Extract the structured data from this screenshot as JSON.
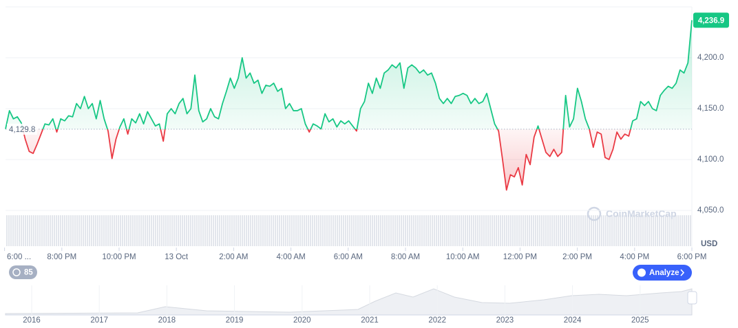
{
  "chart_data": {
    "type": "area",
    "values": [
      4130,
      4148,
      4140,
      4142,
      4136,
      4120,
      4108,
      4106,
      4115,
      4125,
      4135,
      4134,
      4140,
      4127,
      4140,
      4138,
      4143,
      4142,
      4155,
      4150,
      4162,
      4150,
      4155,
      4140,
      4158,
      4140,
      4128,
      4101,
      4120,
      4132,
      4140,
      4125,
      4140,
      4136,
      4145,
      4135,
      4147,
      4140,
      4133,
      4135,
      4118,
      4145,
      4150,
      4145,
      4155,
      4160,
      4145,
      4150,
      4183,
      4148,
      4137,
      4140,
      4150,
      4142,
      4140,
      4155,
      4167,
      4180,
      4170,
      4180,
      4200,
      4180,
      4185,
      4175,
      4178,
      4165,
      4173,
      4172,
      4175,
      4167,
      4170,
      4150,
      4155,
      4148,
      4148,
      4150,
      4135,
      4127,
      4135,
      4133,
      4130,
      4145,
      4137,
      4140,
      4132,
      4138,
      4135,
      4138,
      4133,
      4128,
      4150,
      4157,
      4175,
      4165,
      4180,
      4170,
      4185,
      4188,
      4193,
      4190,
      4195,
      4170,
      4190,
      4193,
      4190,
      4185,
      4188,
      4183,
      4185,
      4175,
      4160,
      4155,
      4160,
      4155,
      4162,
      4163,
      4165,
      4163,
      4155,
      4160,
      4155,
      4157,
      4165,
      4150,
      4135,
      4128,
      4100,
      4070,
      4085,
      4083,
      4092,
      4075,
      4105,
      4095,
      4122,
      4133,
      4120,
      4107,
      4103,
      4110,
      4103,
      4107,
      4163,
      4132,
      4140,
      4170,
      4157,
      4140,
      4130,
      4112,
      4127,
      4125,
      4102,
      4100,
      4110,
      4127,
      4120,
      4125,
      4123,
      4138,
      4140,
      4157,
      4153,
      4157,
      4150,
      4148,
      4163,
      4168,
      4172,
      4170,
      4175,
      4188,
      4185,
      4195,
      4236.9
    ],
    "up_color": "#16c784",
    "down_color": "#ea3943",
    "baseline": {
      "value": 4129.8,
      "label": "4,129.8"
    },
    "last_price": {
      "value": 4236.9,
      "label": "4,236.9"
    },
    "ylim": [
      4050,
      4250
    ],
    "yticks": [
      {
        "value": 4050,
        "label": "4,050.0"
      },
      {
        "value": 4100,
        "label": "4,100.0"
      },
      {
        "value": 4150,
        "label": "4,150.0"
      },
      {
        "value": 4200,
        "label": "4,200.0"
      }
    ],
    "xticks": [
      "6:00 ...",
      "8:00 PM",
      "10:00 PM",
      "13 Oct",
      "2:00 AM",
      "4:00 AM",
      "6:00 AM",
      "8:00 AM",
      "10:00 AM",
      "12:00 PM",
      "2:00 PM",
      "4:00 PM",
      "6:00 PM"
    ],
    "currency": "USD",
    "watermark": "CoinMarketCap",
    "history_button": "85",
    "analyze_button": "Analyze",
    "navigator_years": [
      "2016",
      "2017",
      "2018",
      "2019",
      "2020",
      "2021",
      "2022",
      "2023",
      "2024",
      "2025"
    ]
  }
}
